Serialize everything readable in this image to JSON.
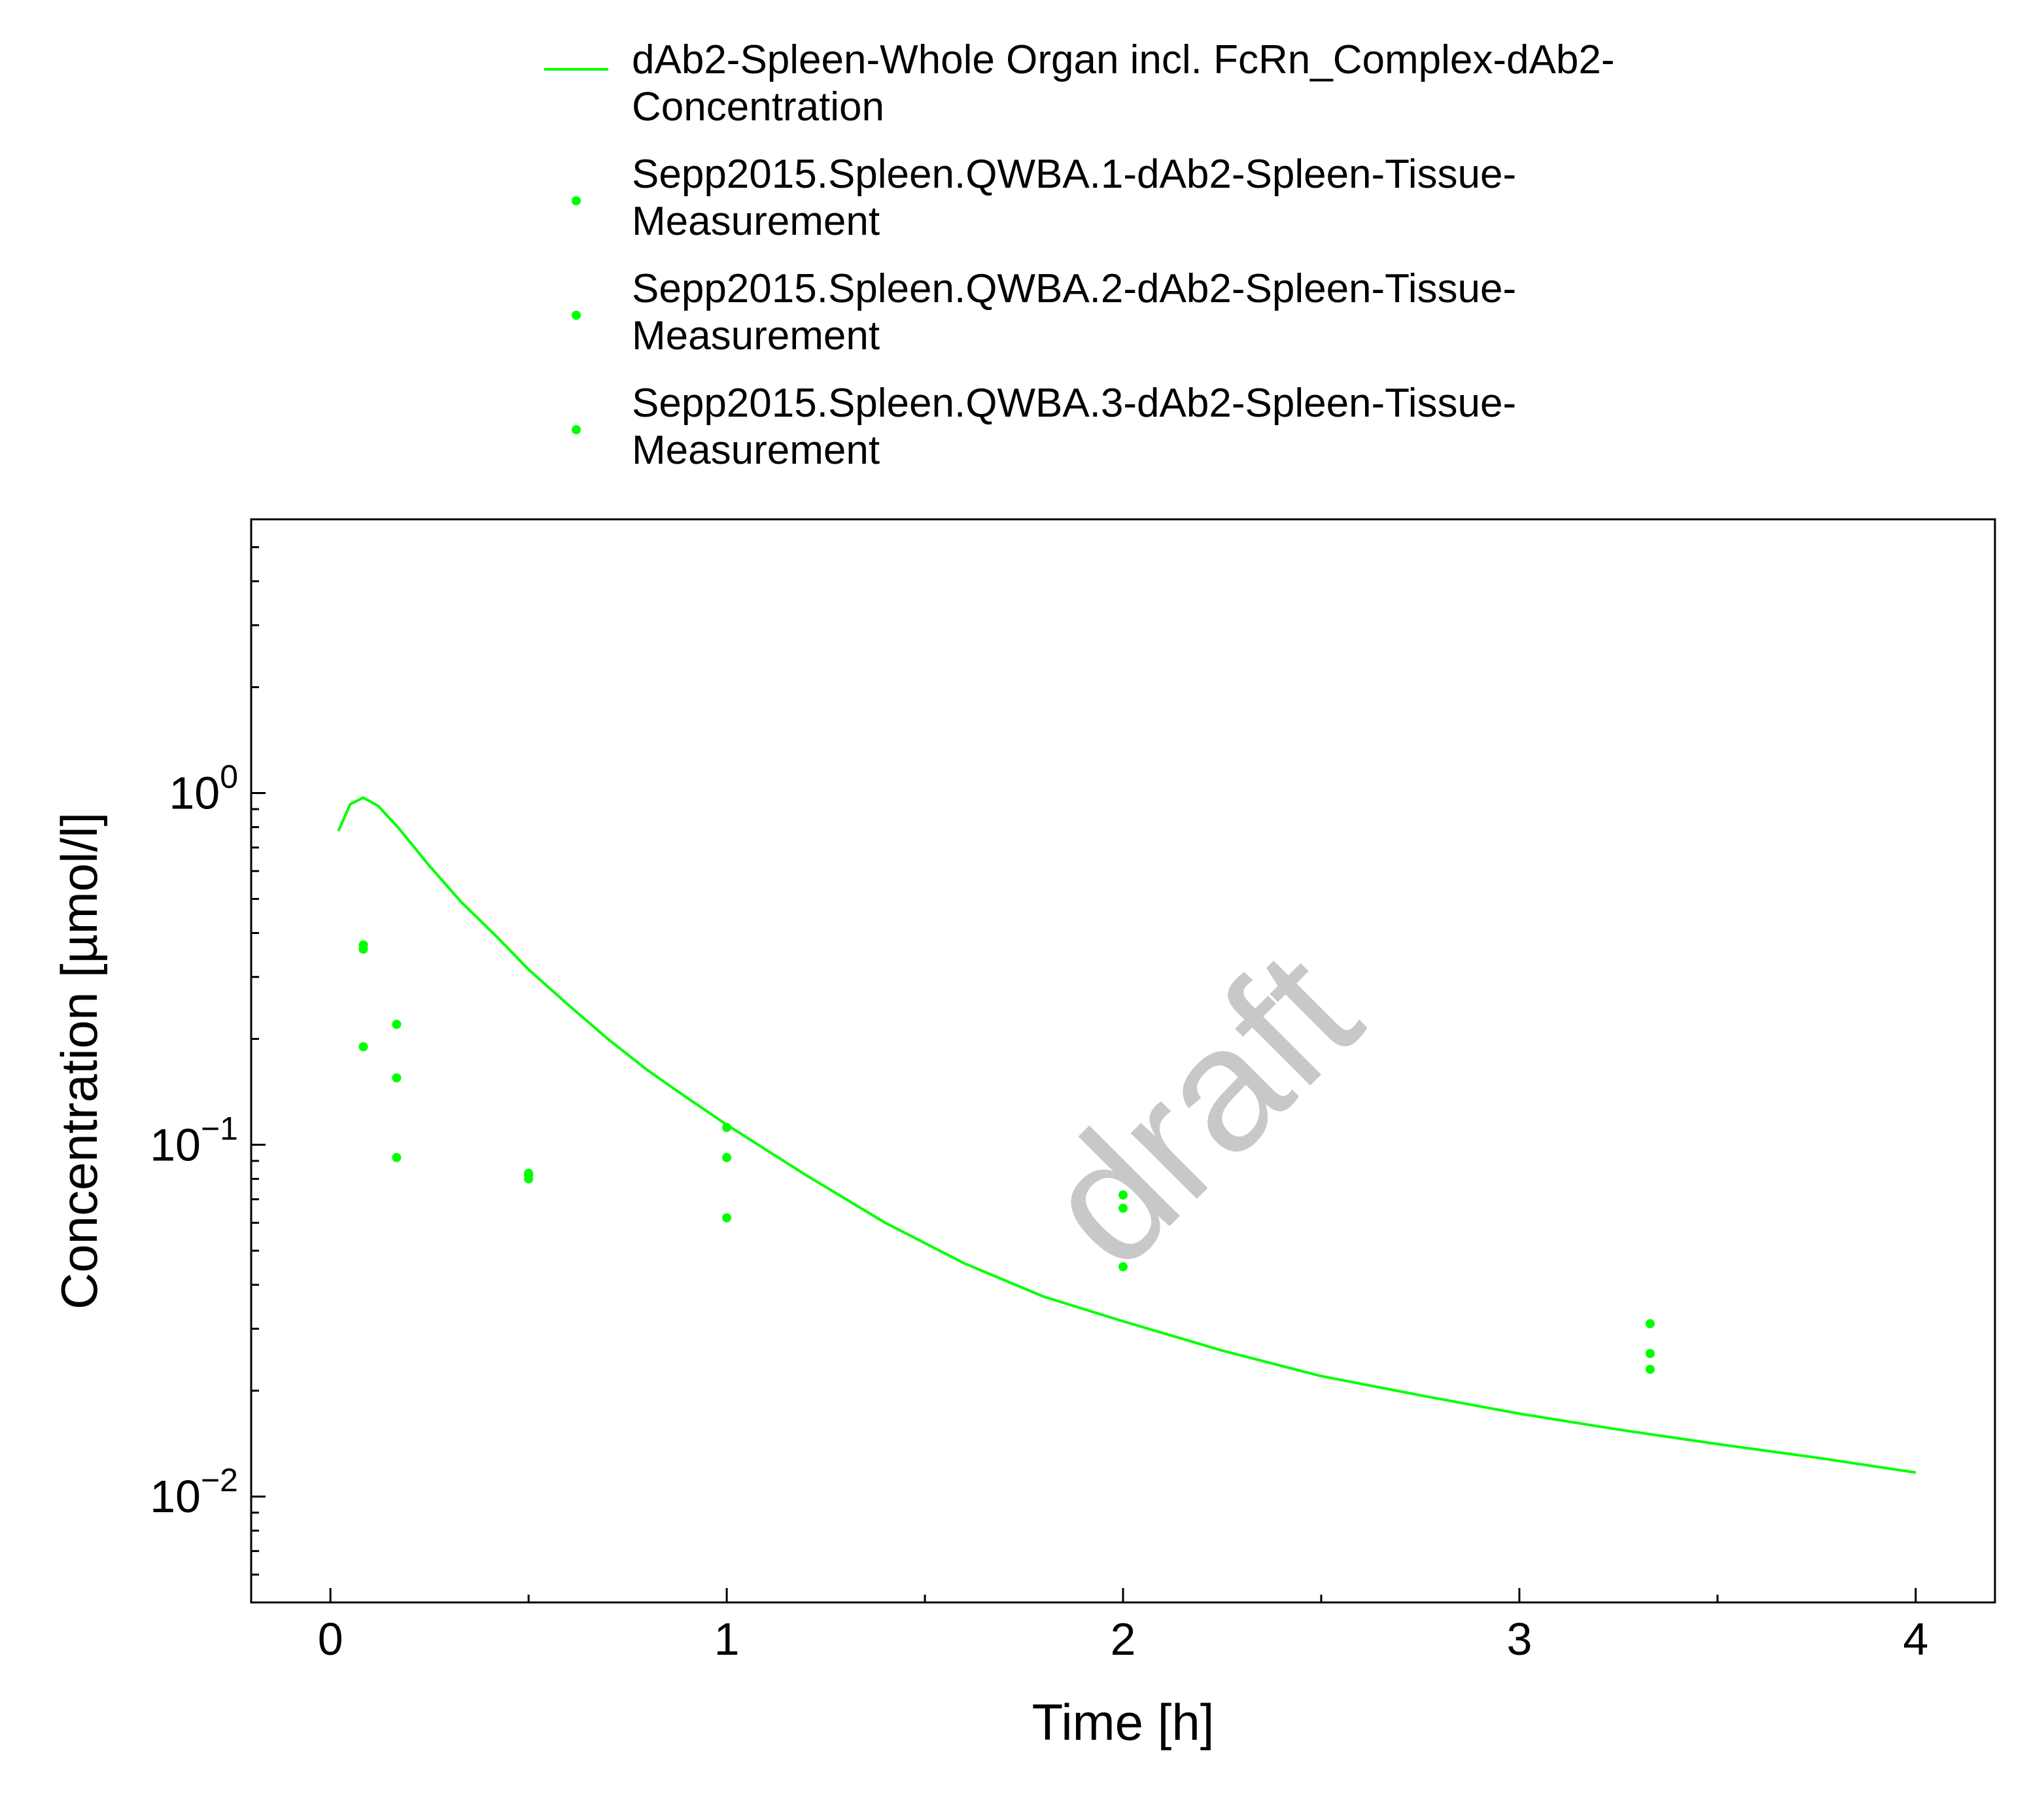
{
  "chart_data": {
    "type": "scatter",
    "xlabel": "Time [h]",
    "ylabel": "Concentration [µmol/l]",
    "xlim": [
      -0.2,
      4.2
    ],
    "ylim": [
      0.005,
      6.0
    ],
    "y_scale": "log",
    "x_ticks": [
      0,
      1,
      2,
      3,
      4
    ],
    "y_ticks": [
      {
        "value": 0.01,
        "base": "10",
        "exp": "−2"
      },
      {
        "value": 0.1,
        "base": "10",
        "exp": "−1"
      },
      {
        "value": 1,
        "base": "10",
        "exp": "0"
      }
    ],
    "grid": false,
    "legend_position": "top",
    "watermark": "draft",
    "series": [
      {
        "name": "dAb2-Spleen-Whole Organ incl. FcRn_Complex-dAb2-Concentration",
        "legend_lines": [
          "dAb2-Spleen-Whole Organ incl. FcRn_Complex-dAb2-",
          "Concentration"
        ],
        "kind": "line",
        "color": "#00ff00",
        "x": [
          0.02,
          0.05,
          0.083,
          0.12,
          0.17,
          0.25,
          0.33,
          0.42,
          0.5,
          0.6,
          0.7,
          0.8,
          0.9,
          1.0,
          1.2,
          1.4,
          1.6,
          1.8,
          2.0,
          2.25,
          2.5,
          2.75,
          3.0,
          3.25,
          3.5,
          3.75,
          4.0
        ],
        "y": [
          0.78,
          0.93,
          0.97,
          0.92,
          0.8,
          0.62,
          0.49,
          0.39,
          0.315,
          0.25,
          0.2,
          0.163,
          0.136,
          0.114,
          0.082,
          0.06,
          0.046,
          0.037,
          0.0315,
          0.026,
          0.022,
          0.0194,
          0.0172,
          0.0155,
          0.0141,
          0.0129,
          0.0117
        ]
      },
      {
        "name": "Sepp2015.Spleen.QWBA.1-dAb2-Spleen-Tissue-Measurement",
        "legend_lines": [
          "Sepp2015.Spleen.QWBA.1-dAb2-Spleen-Tissue-",
          "Measurement"
        ],
        "kind": "points",
        "color": "#00ff00",
        "x": [
          0.083,
          0.167,
          0.5,
          1.0,
          2.0,
          3.33
        ],
        "y": [
          0.37,
          0.22,
          0.082,
          0.112,
          0.072,
          0.031
        ]
      },
      {
        "name": "Sepp2015.Spleen.QWBA.2-dAb2-Spleen-Tissue-Measurement",
        "legend_lines": [
          "Sepp2015.Spleen.QWBA.2-dAb2-Spleen-Tissue-",
          "Measurement"
        ],
        "kind": "points",
        "color": "#00ff00",
        "x": [
          0.083,
          0.167,
          0.5,
          1.0,
          2.0,
          3.33
        ],
        "y": [
          0.36,
          0.155,
          0.08,
          0.092,
          0.066,
          0.0255
        ]
      },
      {
        "name": "Sepp2015.Spleen.QWBA.3-dAb2-Spleen-Tissue-Measurement",
        "legend_lines": [
          "Sepp2015.Spleen.QWBA.3-dAb2-Spleen-Tissue-",
          "Measurement"
        ],
        "kind": "points",
        "color": "#00ff00",
        "x": [
          0.083,
          0.167,
          0.5,
          1.0,
          2.0,
          3.33
        ],
        "y": [
          0.19,
          0.092,
          0.083,
          0.062,
          0.045,
          0.023
        ]
      }
    ]
  }
}
